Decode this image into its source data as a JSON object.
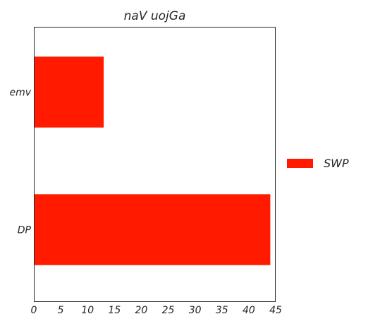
{
  "chart_data": {
    "type": "bar",
    "orientation": "horizontal",
    "title": "naV  uojGa",
    "categories": [
      "emv",
      "DP"
    ],
    "series": [
      {
        "name": "SWP",
        "color": "#ff1a00",
        "values": [
          13,
          44
        ]
      }
    ],
    "xlim": [
      0,
      45
    ],
    "xticks": [
      0,
      5,
      10,
      15,
      20,
      25,
      30,
      35,
      40,
      45
    ],
    "xtick_labels": [
      "0",
      "5",
      "10",
      "15",
      "20",
      "25",
      "30",
      "35",
      "40",
      "45"
    ],
    "xlabel": "",
    "ylabel": "",
    "grid": false,
    "legend_position": "right"
  }
}
